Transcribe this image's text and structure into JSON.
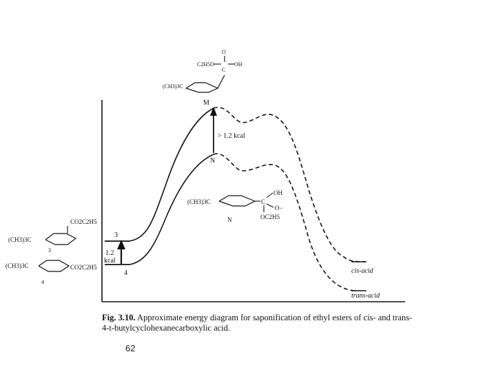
{
  "figure": {
    "caption_label": "Fig. 3.10.",
    "caption_text": "Approximate energy diagram for saponification of ethyl esters of cis- and trans-4-t-butylcyclohexanecarboxylic acid."
  },
  "labels": {
    "point_m": "M",
    "point_n": "N",
    "level_3": "3",
    "level_4": "4",
    "gap_top": "> 1.2 kcal",
    "gap_bottom_1": "1.2",
    "gap_bottom_2": "kcal",
    "cis_acid": "cis-acid",
    "trans_acid": "trans-acid"
  },
  "structures": {
    "top_tbu": "(CH3)3C",
    "top_left_group": "C2H5O",
    "top_right_group": "OH",
    "top_carbonyl_o": "O",
    "top_carbon": "C",
    "mid_tbu": "(CH3)3C",
    "mid_oh": "OH",
    "mid_o_minus": "O−",
    "mid_oet": "OC2H5",
    "mid_carbon": "C",
    "mid_label": "N",
    "s3_tbu": "(CH3)3C",
    "s3_ester": "CO2C2H5",
    "s3_number": "3",
    "s4_tbu": "(CH3)3C",
    "s4_ester": "CO2C2H5",
    "s4_number": "4"
  },
  "page": {
    "number": "62"
  }
}
